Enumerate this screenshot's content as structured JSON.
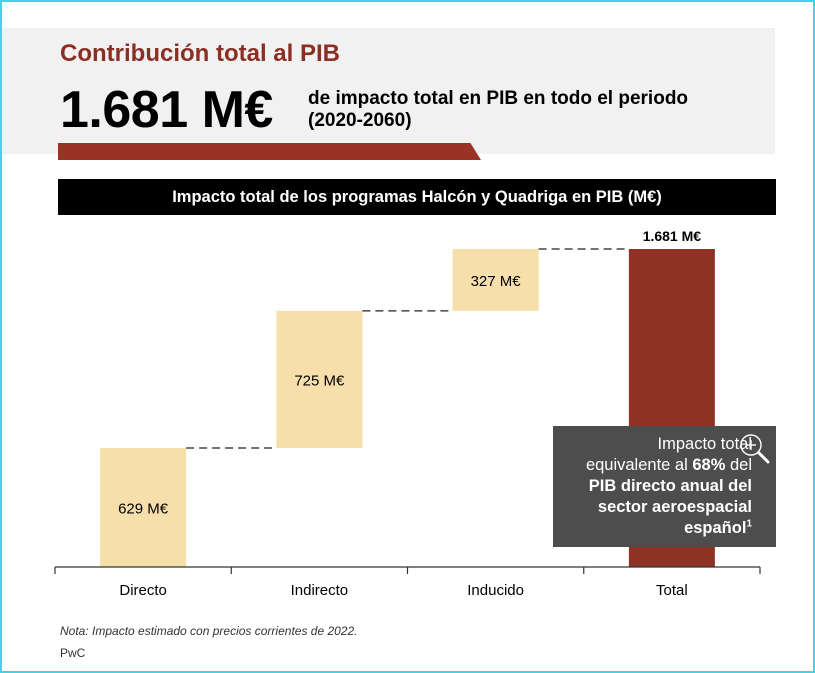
{
  "header": {
    "title": "Contribución total al PIB",
    "value": "1.681 M€",
    "description": "de impacto total en PIB en todo el periodo (2020-2060)"
  },
  "chart_data": {
    "type": "waterfall",
    "title": "Impacto total de los programas Halcón y Quadriga en PIB (M€)",
    "categories": [
      "Directo",
      "Indirecto",
      "Inducido",
      "Total"
    ],
    "values": [
      629,
      725,
      327,
      1681
    ],
    "labels": [
      "629 M€",
      "725 M€",
      "327 M€",
      "1.681 M€"
    ],
    "is_total": [
      false,
      false,
      false,
      true
    ],
    "ylim": [
      0,
      1681
    ],
    "colors": {
      "step": "#f6dfab",
      "total": "#8e3226"
    }
  },
  "callout": {
    "line1": "Impacto total",
    "line2_prefix": "equivalente al ",
    "line2_bold": "68%",
    "line2_suffix": " del",
    "line3": "PIB directo anual del",
    "line4": "sector aeroespacial",
    "line5": "español",
    "footnote_mark": "1",
    "icon": "zoom-in-icon"
  },
  "footer": {
    "note": "Nota: Impacto estimado con precios corrientes de 2022.",
    "source": "PwC"
  }
}
